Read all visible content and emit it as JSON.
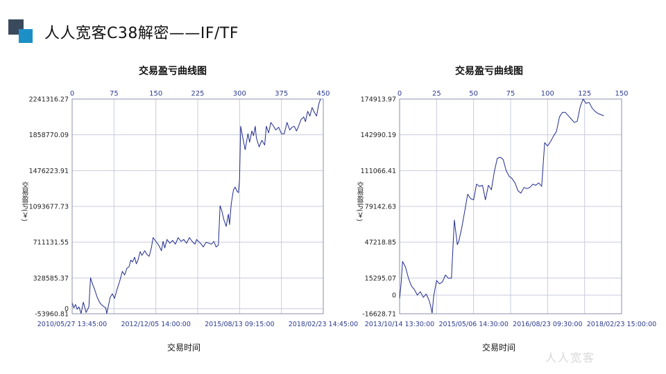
{
  "page": {
    "title": "人人宽客C38解密——IF/TF",
    "watermark": "人人宽客"
  },
  "chart_data": [
    {
      "type": "line",
      "title": "交易盈亏曲线图",
      "xlabel": "交易时间",
      "ylabel": "交易盈亏(￥)",
      "top_axis_ticks": [
        0,
        75,
        150,
        225,
        300,
        375,
        450
      ],
      "top_axis_range": [
        0,
        450
      ],
      "bottom_axis_ticks": [
        "2010/05/27 13:45:00",
        "2012/12/05 14:00:00",
        "2015/08/13 09:15:00",
        "2018/02/23 14:45:00"
      ],
      "y_ticks": [
        "2241316.27",
        "1858770.09",
        "1476223.91",
        "1093677.73",
        "711131.55",
        "328585.37",
        "0",
        "-53960.81"
      ],
      "y_tick_values": [
        2241316.27,
        1858770.09,
        1476223.91,
        1093677.73,
        711131.55,
        328585.37,
        0,
        -53960.81
      ],
      "ylim": [
        -53960.81,
        2241316.27
      ],
      "grid": true,
      "series": [
        {
          "color": "#1f2a8c",
          "x": [
            0,
            3,
            6,
            9,
            12,
            16,
            20,
            25,
            30,
            33,
            36,
            40,
            45,
            50,
            55,
            60,
            62,
            66,
            68,
            72,
            76,
            80,
            85,
            90,
            94,
            98,
            102,
            105,
            108,
            112,
            115,
            118,
            122,
            125,
            130,
            134,
            138,
            142,
            145,
            150,
            155,
            160,
            163,
            166,
            170,
            175,
            180,
            185,
            190,
            195,
            200,
            205,
            210,
            215,
            220,
            223,
            226,
            230,
            235,
            240,
            245,
            250,
            254,
            258,
            262,
            265,
            268,
            270,
            272,
            276,
            280,
            282,
            285,
            289,
            292,
            295,
            298,
            300,
            302,
            305,
            310,
            315,
            318,
            322,
            325,
            328,
            330,
            335,
            340,
            345,
            348,
            352,
            356,
            360,
            365,
            370,
            375,
            380,
            385,
            390,
            394,
            398,
            402,
            405,
            410,
            415,
            418,
            422,
            426,
            430,
            434,
            438,
            442,
            445
          ],
          "y": [
            60000,
            10000,
            45000,
            -5000,
            20000,
            -50000,
            70000,
            -40000,
            20000,
            330000,
            270000,
            210000,
            120000,
            60000,
            30000,
            10000,
            -50000,
            60000,
            120000,
            160000,
            110000,
            200000,
            290000,
            400000,
            360000,
            430000,
            450000,
            520000,
            500000,
            550000,
            480000,
            520000,
            610000,
            570000,
            620000,
            580000,
            560000,
            650000,
            760000,
            720000,
            680000,
            620000,
            720000,
            650000,
            740000,
            700000,
            730000,
            690000,
            760000,
            720000,
            740000,
            700000,
            760000,
            720000,
            690000,
            740000,
            720000,
            700000,
            660000,
            710000,
            700000,
            690000,
            720000,
            660000,
            680000,
            1100000,
            1050000,
            1000000,
            950000,
            880000,
            1010000,
            900000,
            1120000,
            1270000,
            1300000,
            1260000,
            1240000,
            1380000,
            1950000,
            1850000,
            1700000,
            1870000,
            1780000,
            1900000,
            1850000,
            1950000,
            1830000,
            1730000,
            1800000,
            1750000,
            1950000,
            1880000,
            1990000,
            1960000,
            1910000,
            1940000,
            1870000,
            1870000,
            1990000,
            1910000,
            1940000,
            1950000,
            1900000,
            1940000,
            2020000,
            2050000,
            2000000,
            2110000,
            2060000,
            2150000,
            2100000,
            2060000,
            2190000,
            2241316
          ]
        }
      ]
    },
    {
      "type": "line",
      "title": "交易盈亏曲线图",
      "xlabel": "交易时间",
      "ylabel": "交易盈亏(￥)",
      "top_axis_ticks": [
        0,
        25,
        50,
        75,
        100,
        125,
        150
      ],
      "top_axis_range": [
        0,
        150
      ],
      "bottom_axis_ticks": [
        "2013/10/14 13:30:00",
        "2015/05/06 14:30:00",
        "2016/08/23 09:30:00",
        "2018/02/23 15:00:00"
      ],
      "y_ticks": [
        "174913.97",
        "142990.19",
        "111066.41",
        "79142.63",
        "47218.85",
        "15295.07",
        "0",
        "-16628.71"
      ],
      "y_tick_values": [
        174913.97,
        142990.19,
        111066.41,
        79142.63,
        47218.85,
        15295.07,
        0,
        -16628.71
      ],
      "ylim": [
        -16628.71,
        174913.97
      ],
      "grid": true,
      "series": [
        {
          "color": "#1f2a8c",
          "x": [
            0,
            1,
            2,
            4,
            6,
            8,
            10,
            12,
            14,
            16,
            18,
            20,
            21,
            22,
            23,
            25,
            27,
            29,
            31,
            33,
            35,
            37,
            39,
            40,
            42,
            44,
            46,
            48,
            50,
            52,
            54,
            56,
            58,
            60,
            62,
            64,
            66,
            68,
            70,
            72,
            74,
            76,
            78,
            80,
            82,
            84,
            86,
            88,
            90,
            92,
            94,
            96,
            98,
            100,
            102,
            104,
            106,
            108,
            110,
            112,
            114,
            116,
            118,
            120,
            122,
            124,
            126,
            128,
            130,
            132,
            134,
            136,
            138
          ],
          "y": [
            -3000,
            10000,
            30000,
            25000,
            15000,
            8000,
            5000,
            0,
            3000,
            -2000,
            1000,
            -5000,
            -10000,
            -16000,
            -1000,
            13000,
            10000,
            12000,
            18000,
            15000,
            15000,
            67000,
            45000,
            48000,
            60000,
            75000,
            90000,
            86000,
            85000,
            99000,
            97000,
            98000,
            85000,
            98000,
            94000,
            110000,
            122000,
            123000,
            121000,
            111000,
            106000,
            104000,
            100000,
            93000,
            91000,
            96000,
            95000,
            96000,
            99000,
            98000,
            100000,
            97000,
            136000,
            133000,
            137000,
            142000,
            146000,
            159000,
            163000,
            163000,
            160000,
            157000,
            154000,
            155000,
            168000,
            174913,
            171000,
            172000,
            167000,
            164000,
            162000,
            161000,
            160000
          ]
        }
      ]
    }
  ]
}
